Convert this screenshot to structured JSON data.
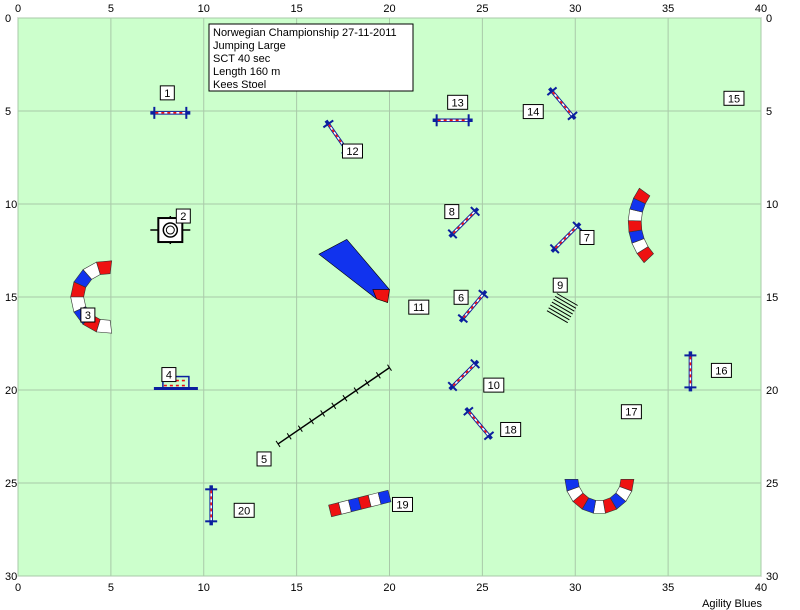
{
  "course": {
    "lines": [
      "Norwegian Championship 27-11-2011",
      "Jumping Large",
      "SCT 40 sec",
      "Length 160 m",
      "Kees Stoel"
    ]
  },
  "footer": "Agility Blues",
  "axes": {
    "x_ticks": [
      "0",
      "5",
      "10",
      "15",
      "20",
      "25",
      "30",
      "35",
      "40"
    ],
    "y_ticks": [
      "0",
      "5",
      "10",
      "15",
      "20",
      "25",
      "30"
    ],
    "xlim": [
      0,
      40
    ],
    "ylim": [
      0,
      30
    ]
  },
  "colors": {
    "field": "#ccffcc",
    "tunnel_red": "#ee1111",
    "tunnel_blue": "#1133ee",
    "jump_blue": "#0b1f9e",
    "aframe_blue": "#1133ee"
  },
  "obstacles": [
    {
      "num": "1",
      "kind": "jump",
      "x": 8.2,
      "y": 5.1,
      "ang": 0
    },
    {
      "num": "2",
      "kind": "table",
      "x": 8.2,
      "y": 11.4,
      "ang": 0
    },
    {
      "num": "3",
      "kind": "tunnel-c-left",
      "x": 5.0,
      "y": 15.0,
      "ang": 0
    },
    {
      "num": "4",
      "kind": "double-jump",
      "x": 8.5,
      "y": 19.6,
      "ang": 0
    },
    {
      "num": "5",
      "kind": "dogwalk",
      "x": 14.0,
      "y": 22.9,
      "ang": 0
    },
    {
      "num": "6",
      "kind": "jump",
      "x": 24.5,
      "y": 15.5,
      "ang": -50
    },
    {
      "num": "7",
      "kind": "jump",
      "x": 29.5,
      "y": 11.8,
      "ang": -45
    },
    {
      "num": "8",
      "kind": "jump",
      "x": 24.0,
      "y": 11.0,
      "ang": -45
    },
    {
      "num": "9",
      "kind": "tire-weave",
      "x": 29.3,
      "y": 15.6,
      "ang": 0
    },
    {
      "num": "10",
      "kind": "jump",
      "x": 24.0,
      "y": 19.2,
      "ang": -45
    },
    {
      "num": "11",
      "kind": "aframe",
      "x": 19.8,
      "y": 14.9,
      "ang": 0
    },
    {
      "num": "12",
      "kind": "jump",
      "x": 17.2,
      "y": 6.4,
      "ang": 55
    },
    {
      "num": "13",
      "kind": "jump",
      "x": 23.4,
      "y": 5.5,
      "ang": 0
    },
    {
      "num": "14",
      "kind": "jump",
      "x": 29.3,
      "y": 4.6,
      "ang": 50
    },
    {
      "num": "15",
      "kind": "tunnel-curve-right",
      "x": 33.0,
      "y": 10.5,
      "ang": 0
    },
    {
      "num": "16",
      "kind": "jump",
      "x": 36.2,
      "y": 19.0,
      "ang": 90
    },
    {
      "num": "17",
      "kind": "tunnel-u-bottom",
      "x": 31.3,
      "y": 25.2,
      "ang": 0
    },
    {
      "num": "18",
      "kind": "jump",
      "x": 24.8,
      "y": 21.8,
      "ang": 50
    },
    {
      "num": "19",
      "kind": "tunnel-straight",
      "x": 17.9,
      "y": 26.1,
      "ang": 0
    },
    {
      "num": "20",
      "kind": "jump",
      "x": 10.4,
      "y": 26.2,
      "ang": 90
    }
  ]
}
